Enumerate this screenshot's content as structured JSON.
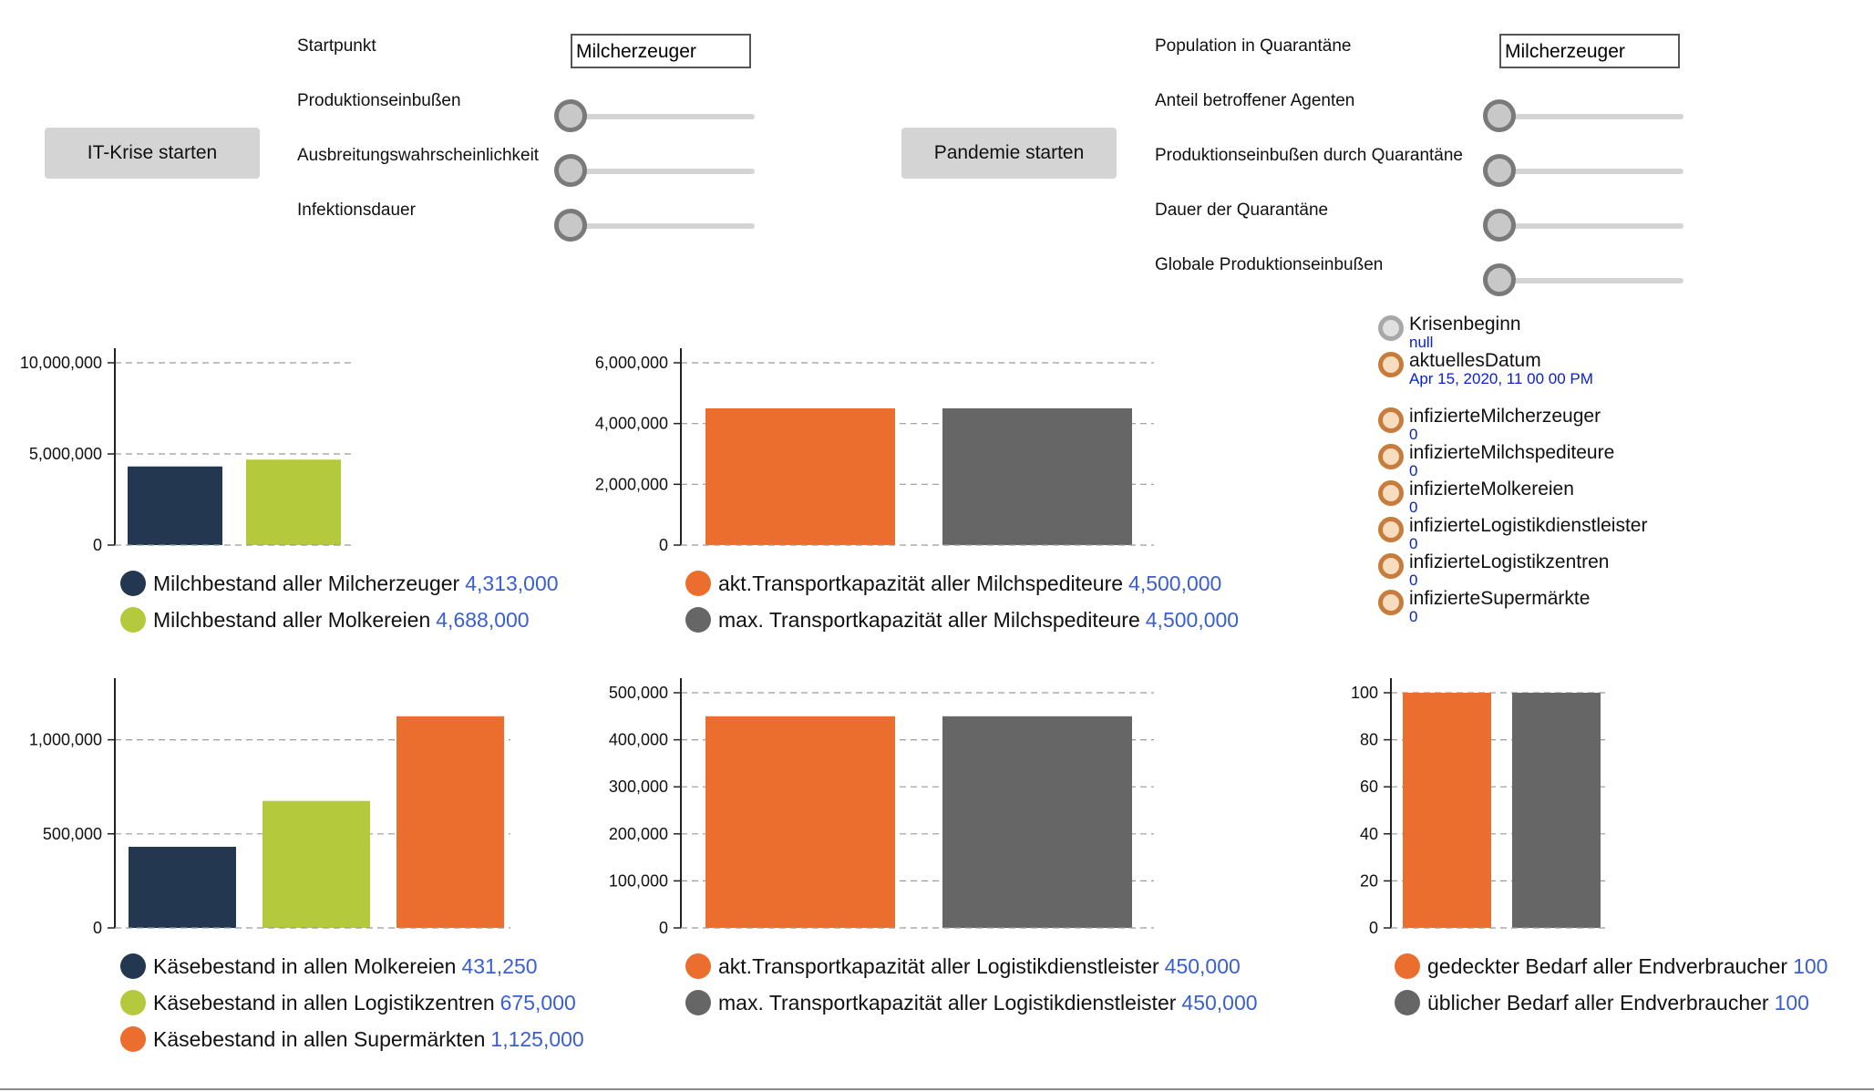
{
  "it_panel": {
    "button": "IT-Krise starten",
    "startpunkt_label": "Startpunkt",
    "startpunkt_value": "Milcherzeuger",
    "sliders": [
      {
        "label": "Produktionseinbußen",
        "value": 0
      },
      {
        "label": "Ausbreitungswahrscheinlichkeit",
        "value": 0
      },
      {
        "label": "Infektionsdauer",
        "value": 0
      }
    ]
  },
  "pandemic_panel": {
    "button": "Pandemie starten",
    "population_label": "Population in Quarantäne",
    "population_value": "Milcherzeuger",
    "sliders": [
      {
        "label": "Anteil betroffener Agenten",
        "value": 0
      },
      {
        "label": "Produktionseinbußen durch Quarantäne",
        "value": 0
      },
      {
        "label": "Dauer der Quarantäne",
        "value": 0
      },
      {
        "label": "Globale Produktionseinbußen",
        "value": 0
      }
    ]
  },
  "status": [
    {
      "name": "Krisenbeginn",
      "value": "null"
    },
    {
      "name": "aktuellesDatum",
      "value": "Apr 15, 2020, 11 00 00 PM"
    },
    {
      "name": "infizierteMilcherzeuger",
      "value": "0"
    },
    {
      "name": "infizierteMilchspediteure",
      "value": "0"
    },
    {
      "name": "infizierteMolkereien",
      "value": "0"
    },
    {
      "name": "infizierteLogistikdienstleister",
      "value": "0"
    },
    {
      "name": "infizierteLogistikzentren",
      "value": "0"
    },
    {
      "name": "infizierteSupermärkte",
      "value": "0"
    }
  ],
  "colors": {
    "navy": "#233751",
    "lime": "#b5c93c",
    "orange": "#ec6e2e",
    "grey": "#666666"
  },
  "chart_data": [
    {
      "type": "bar",
      "ylim": [
        0,
        10000000
      ],
      "yticks": [
        0,
        5000000,
        10000000
      ],
      "ytick_labels": [
        "0",
        "5,000,000",
        "10,000,000"
      ],
      "series": [
        {
          "name": "Milchbestand aller Milcherzeuger",
          "value": 4313000,
          "value_label": "4,313,000",
          "color": "#233751"
        },
        {
          "name": "Milchbestand aller Molkereien",
          "value": 4688000,
          "value_label": "4,688,000",
          "color": "#b5c93c"
        }
      ]
    },
    {
      "type": "bar",
      "ylim": [
        0,
        6000000
      ],
      "yticks": [
        0,
        2000000,
        4000000,
        6000000
      ],
      "ytick_labels": [
        "0",
        "2,000,000",
        "4,000,000",
        "6,000,000"
      ],
      "series": [
        {
          "name": "akt.Transportkapazität aller Milchspediteure",
          "value": 4500000,
          "value_label": "4,500,000",
          "color": "#ec6e2e"
        },
        {
          "name": "max. Transportkapazität aller Milchspediteure",
          "value": 4500000,
          "value_label": "4,500,000",
          "color": "#666666"
        }
      ]
    },
    {
      "type": "bar",
      "ylim": [
        0,
        1250000
      ],
      "yticks": [
        0,
        500000,
        1000000
      ],
      "ytick_labels": [
        "0",
        "500,000",
        "1,000,000"
      ],
      "series": [
        {
          "name": "Käsebestand in allen Molkereien",
          "value": 431250,
          "value_label": "431,250",
          "color": "#233751"
        },
        {
          "name": "Käsebestand in allen Logistikzentren",
          "value": 675000,
          "value_label": "675,000",
          "color": "#b5c93c"
        },
        {
          "name": "Käsebestand in allen Supermärkten",
          "value": 1125000,
          "value_label": "1,125,000",
          "color": "#ec6e2e"
        }
      ]
    },
    {
      "type": "bar",
      "ylim": [
        0,
        500000
      ],
      "yticks": [
        0,
        100000,
        200000,
        300000,
        400000,
        500000
      ],
      "ytick_labels": [
        "0",
        "100,000",
        "200,000",
        "300,000",
        "400,000",
        "500,000"
      ],
      "series": [
        {
          "name": "akt.Transportkapazität aller Logistikdienstleister",
          "value": 450000,
          "value_label": "450,000",
          "color": "#ec6e2e"
        },
        {
          "name": "max. Transportkapazität aller Logistikdienstleister",
          "value": 450000,
          "value_label": "450,000",
          "color": "#666666"
        }
      ]
    },
    {
      "type": "bar",
      "ylim": [
        0,
        100
      ],
      "yticks": [
        0,
        20,
        40,
        60,
        80,
        100
      ],
      "ytick_labels": [
        "0",
        "20",
        "40",
        "60",
        "80",
        "100"
      ],
      "series": [
        {
          "name": "gedeckter Bedarf aller Endverbraucher",
          "value": 100,
          "value_label": "100",
          "color": "#ec6e2e"
        },
        {
          "name": "üblicher Bedarf aller Endverbraucher",
          "value": 100,
          "value_label": "100",
          "color": "#666666"
        }
      ]
    }
  ]
}
